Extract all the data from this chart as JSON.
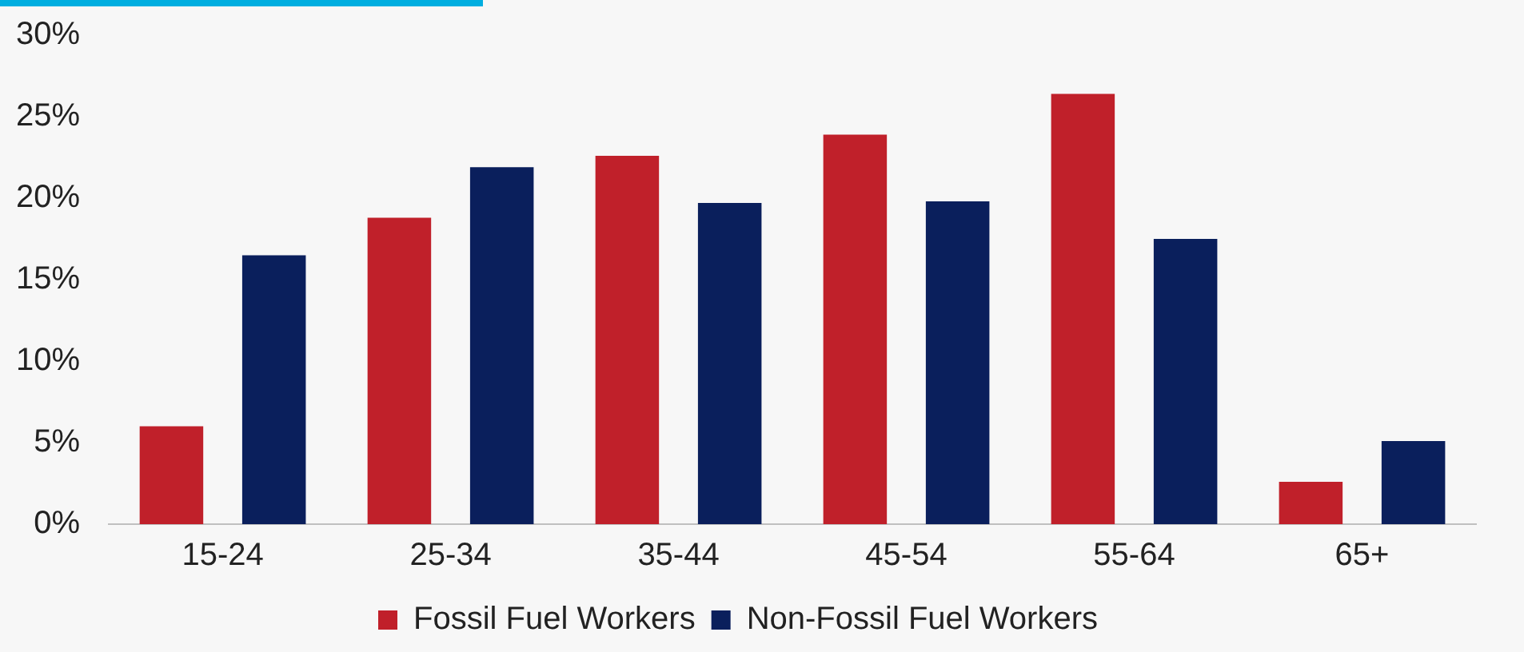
{
  "chart_data": {
    "type": "bar",
    "categories": [
      "15-24",
      "25-34",
      "35-44",
      "45-54",
      "55-64",
      "65+"
    ],
    "series": [
      {
        "name": "Fossil Fuel Workers",
        "color": "#c0202a",
        "values": [
          6.0,
          18.8,
          22.6,
          23.9,
          26.4,
          2.6
        ]
      },
      {
        "name": "Non-Fossil Fuel Workers",
        "color": "#0a1f5c",
        "values": [
          16.5,
          21.9,
          19.7,
          19.8,
          17.5,
          5.1
        ]
      }
    ],
    "ylim": [
      0,
      30
    ],
    "yticks": [
      {
        "value": 0,
        "label": "0%"
      },
      {
        "value": 5,
        "label": "5%"
      },
      {
        "value": 10,
        "label": "10%"
      },
      {
        "value": 15,
        "label": "15%"
      },
      {
        "value": 20,
        "label": "20%"
      },
      {
        "value": 25,
        "label": "25%"
      },
      {
        "value": 30,
        "label": "30%"
      }
    ],
    "grid": false,
    "legend": "bottom"
  }
}
